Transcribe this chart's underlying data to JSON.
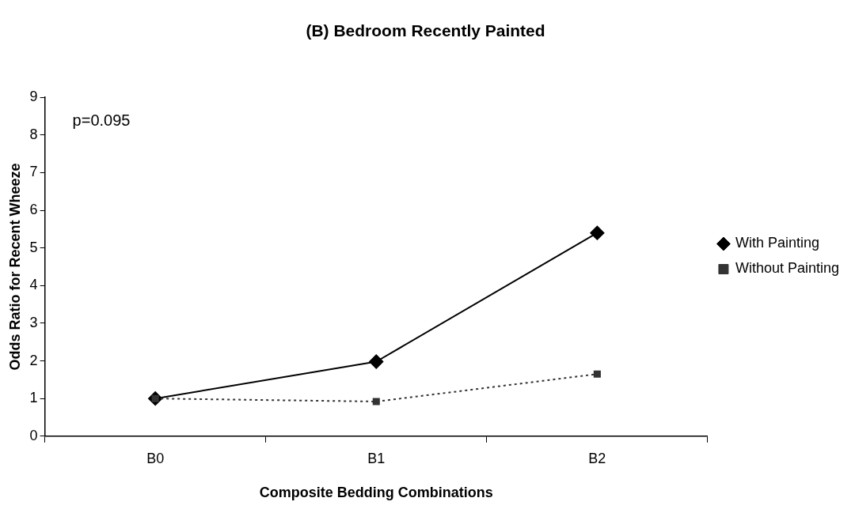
{
  "chart_data": {
    "type": "line",
    "title": "(B) Bedroom Recently Painted",
    "xlabel": "Composite Bedding Combinations",
    "ylabel": "Odds Ratio for Recent Wheeze",
    "categories": [
      "B0",
      "B1",
      "B2"
    ],
    "series": [
      {
        "name": "With Painting",
        "color": "#000000",
        "values": [
          1.0,
          1.98,
          5.4
        ],
        "marker": "diamond",
        "line_style": "solid"
      },
      {
        "name": "Without Painting",
        "color": "#333333",
        "values": [
          1.0,
          0.92,
          1.65
        ],
        "marker": "square",
        "line_style": "dotted"
      }
    ],
    "ylim": [
      0,
      9
    ],
    "yticks": [
      0,
      1,
      2,
      3,
      4,
      5,
      6,
      7,
      8,
      9
    ],
    "grid": false,
    "legend": "right",
    "annotations": [
      "p=0.095"
    ]
  }
}
